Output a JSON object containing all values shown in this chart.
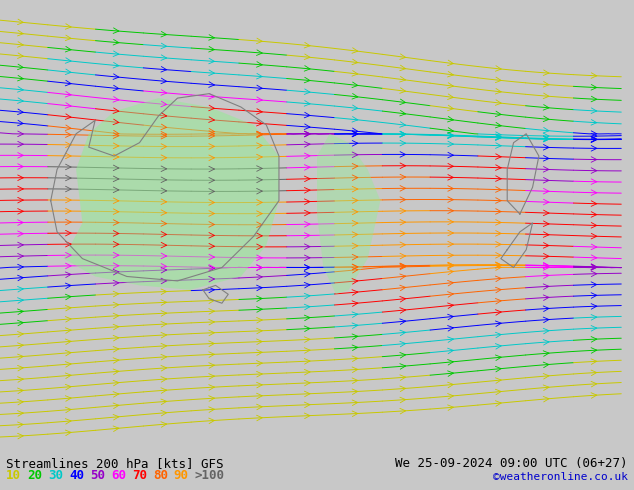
{
  "title_left": "Streamlines 200 hPa [kts] GFS",
  "title_right": "We 25-09-2024 09:00 UTC (06+27)",
  "credit": "©weatheronline.co.uk",
  "background_color": "#d8d8d8",
  "map_bg_color": "#e8e8e8",
  "legend_values": [
    "10",
    "20",
    "30",
    "40",
    "50",
    "60",
    "70",
    "80",
    "90",
    ">100"
  ],
  "legend_colors": [
    "#c8c800",
    "#00c800",
    "#00c8c8",
    "#0000ff",
    "#9600c8",
    "#ff00ff",
    "#ff0000",
    "#ff6400",
    "#ff9600",
    "#646464"
  ],
  "speed_colors": {
    "0": "#c8c800",
    "10": "#c8c800",
    "20": "#00c800",
    "30": "#00c8c8",
    "40": "#0000ff",
    "50": "#9600c8",
    "60": "#ff00ff",
    "70": "#ff0000",
    "80": "#ff6400",
    "90": "#ff9600",
    "100": "#646464"
  },
  "land_color": "#d0d0d0",
  "green_fill_color": "#90ee90",
  "figsize": [
    6.34,
    4.9
  ],
  "dpi": 100
}
